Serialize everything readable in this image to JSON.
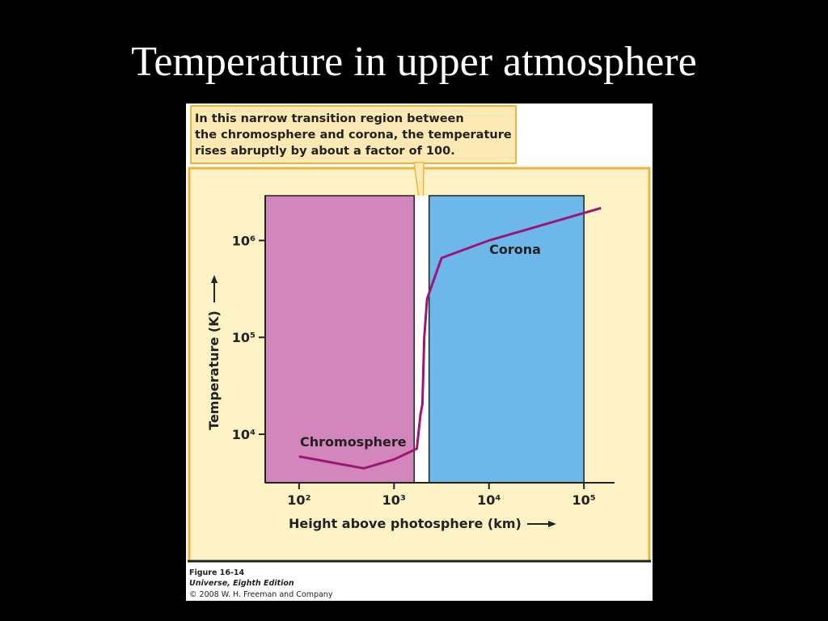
{
  "slide_title": "Temperature in upper atmosphere",
  "chart_data": {
    "type": "line",
    "annotation": [
      "In this narrow transition region between",
      "the chromosphere and corona, the temperature",
      "rises abruptly by about a factor of 100."
    ],
    "x_label": "Height above photosphere (km)",
    "y_label": "Temperature (K)",
    "log_x": true,
    "log_y": true,
    "xlim": [
      44,
      210000
    ],
    "ylim": [
      3160,
      2900000
    ],
    "xticks": [
      {
        "value": 100,
        "label": "10²"
      },
      {
        "value": 1000,
        "label": "10³"
      },
      {
        "value": 10000,
        "label": "10⁴"
      },
      {
        "value": 100000,
        "label": "10⁵"
      }
    ],
    "yticks": [
      {
        "value": 10000,
        "label": "10⁴"
      },
      {
        "value": 100000,
        "label": "10⁵"
      },
      {
        "value": 1000000,
        "label": "10⁶"
      }
    ],
    "regions": [
      {
        "name": "Chromosphere",
        "xlim": [
          44,
          1630
        ],
        "color": "#d386bc"
      },
      {
        "name": "Corona",
        "xlim": [
          2340,
          100000
        ],
        "color": "#6eb7ea"
      }
    ],
    "series": [
      {
        "color": "#9b1675",
        "x": [
          100,
          250,
          480,
          1000,
          1740,
          1900,
          1990,
          2080,
          2230,
          3170,
          10000,
          151000
        ],
        "values": [
          5900,
          5000,
          4450,
          5500,
          7100,
          16000,
          20400,
          100000,
          250000,
          660000,
          1000000,
          2160000
        ]
      }
    ]
  },
  "figure_caption": [
    "Figure 16-14",
    "Universe, Eighth Edition",
    "© 2008 W. H. Freeman and Company"
  ]
}
